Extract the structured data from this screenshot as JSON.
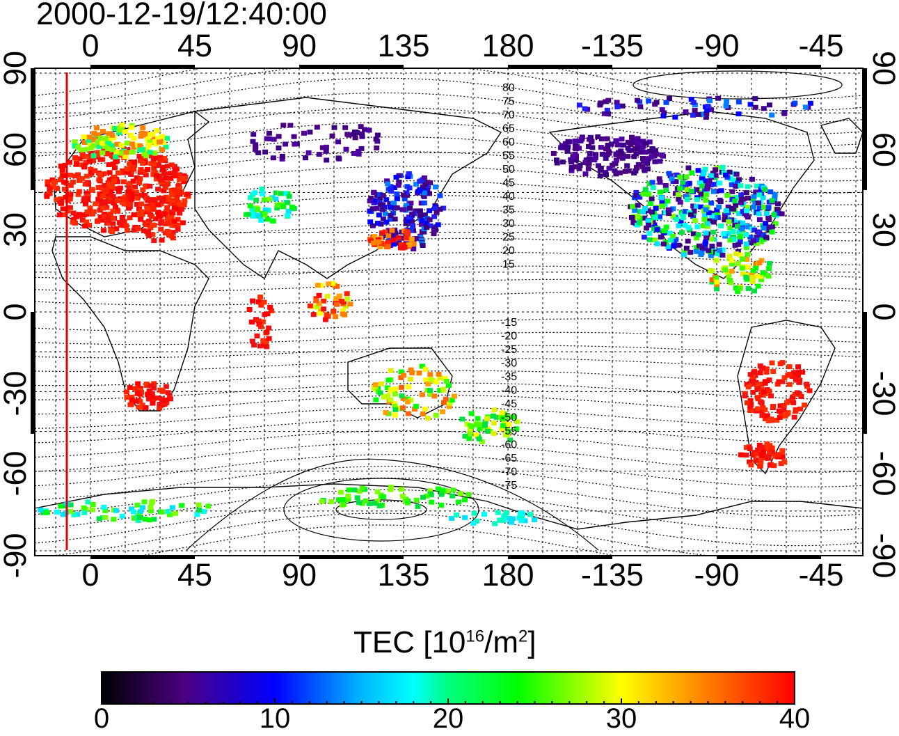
{
  "timestamp": "2000-12-19/12:40:00",
  "map": {
    "x_tick_labels": [
      "0",
      "45",
      "90",
      "135",
      "180",
      "-135",
      "-90",
      "-45"
    ],
    "y_tick_labels_left": [
      "90",
      "60",
      "30",
      "0",
      "-30",
      "-60",
      "-90"
    ],
    "y_tick_labels_right": [
      "90",
      "60",
      "30",
      "0",
      "-30",
      "-60",
      "-90"
    ],
    "contour_labels_north": [
      "80",
      "75",
      "70",
      "65",
      "60",
      "55",
      "50",
      "45",
      "40",
      "35",
      "30",
      "25",
      "20",
      "15"
    ],
    "contour_labels_south": [
      "-15",
      "-20",
      "-25",
      "-30",
      "-35",
      "-40",
      "-45",
      "-50",
      "-55",
      "-60",
      "-65",
      "-70",
      "-75"
    ],
    "grid": true,
    "terminator_color": "#e00000"
  },
  "colorbar": {
    "title_text": "TEC  [10",
    "title_sup1": "16",
    "title_mid": "/m",
    "title_sup2": "2",
    "title_end": "]",
    "tick_labels": [
      "0",
      "10",
      "20",
      "30",
      "40"
    ],
    "colors": [
      "#000000",
      "#4b0082",
      "#0000ff",
      "#00ffff",
      "#00ff00",
      "#ffff00",
      "#ff8000",
      "#ff0000"
    ]
  }
}
